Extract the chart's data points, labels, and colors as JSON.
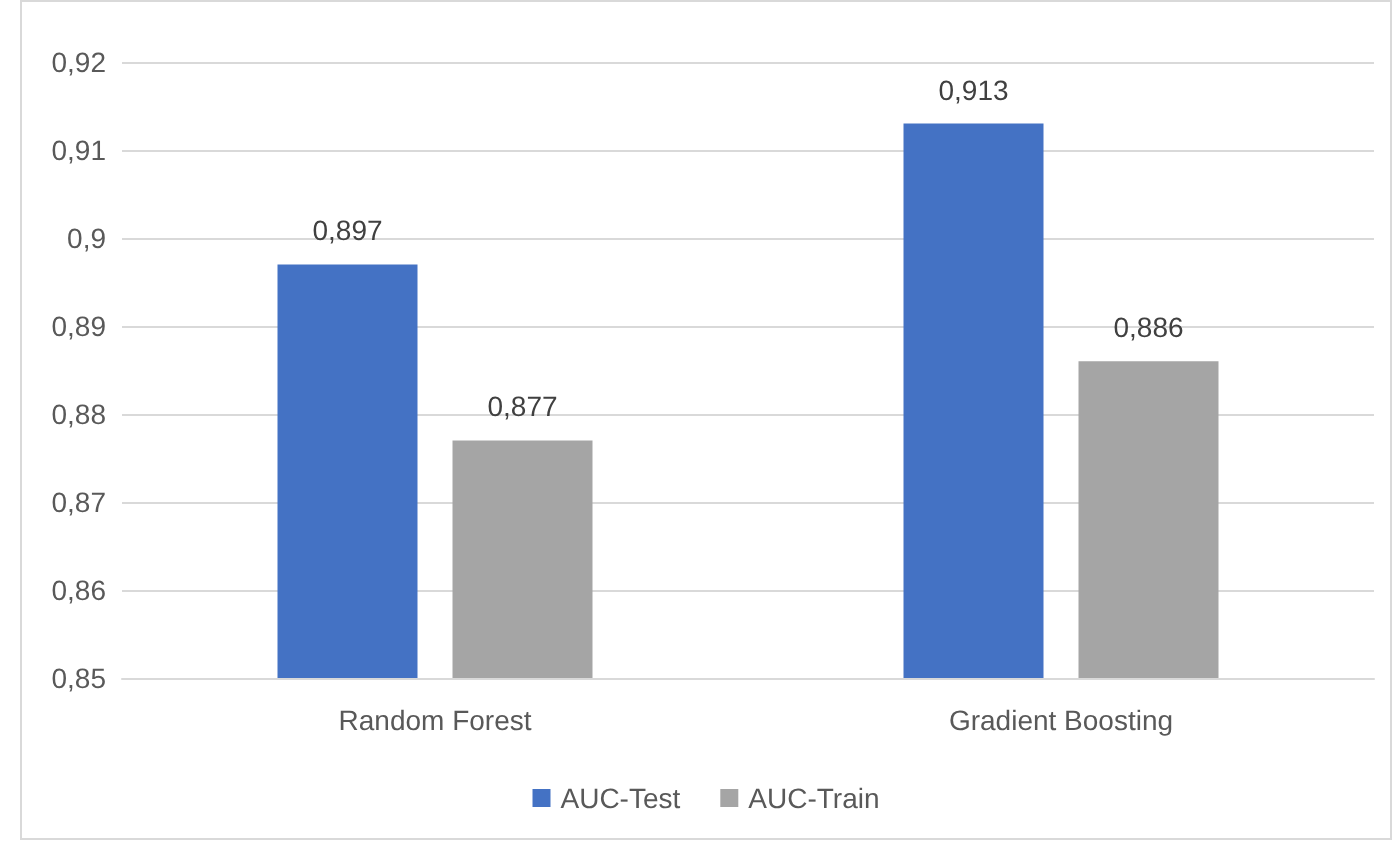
{
  "chart_data": {
    "type": "bar",
    "categories": [
      "Random Forest",
      "Gradient Boosting"
    ],
    "series": [
      {
        "name": "AUC-Test",
        "color": "#4472c4",
        "values": [
          0.897,
          0.913
        ],
        "value_labels": [
          "0,897",
          "0,913"
        ]
      },
      {
        "name": "AUC-Train",
        "color": "#a5a5a5",
        "values": [
          0.877,
          0.886
        ],
        "value_labels": [
          "0,877",
          "0,886"
        ]
      }
    ],
    "ylim": [
      0.85,
      0.92
    ],
    "yticks": [
      {
        "value": 0.85,
        "label": "0,85"
      },
      {
        "value": 0.86,
        "label": "0,86"
      },
      {
        "value": 0.87,
        "label": "0,87"
      },
      {
        "value": 0.88,
        "label": "0,88"
      },
      {
        "value": 0.89,
        "label": "0,89"
      },
      {
        "value": 0.9,
        "label": "0,9"
      },
      {
        "value": 0.91,
        "label": "0,91"
      },
      {
        "value": 0.92,
        "label": "0,92"
      }
    ],
    "grid": "y",
    "legend": "bottom"
  }
}
